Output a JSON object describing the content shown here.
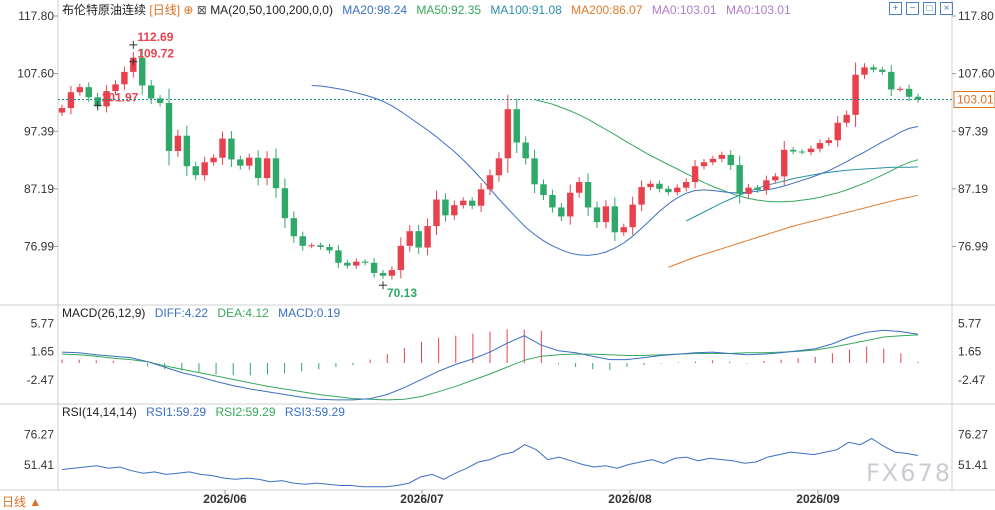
{
  "header": {
    "title": "布伦特原油连续",
    "period_label": "[日线]",
    "ma_label": "MA(20,50,100,200,0,0)",
    "ma20": "MA20:98.24",
    "ma50": "MA50:92.35",
    "ma100": "MA100:91.08",
    "ma200": "MA200:86.07",
    "ma0a": "MA0:103.01",
    "ma0b": "MA0:103.01"
  },
  "macd_header": {
    "label": "MACD(26,12,9)",
    "diff": "DIFF:4.22",
    "dea": "DEA:4.12",
    "macd": "MACD:0.19"
  },
  "rsi_header": {
    "label": "RSI(14,14,14)",
    "rsi1": "RSI1:59.29",
    "rsi2": "RSI2:59.29",
    "rsi3": "RSI3:59.29"
  },
  "footer": {
    "period_tab": "日线 ▲",
    "watermark": "FX678"
  },
  "toolbar": {
    "icons": [
      "expand-icon",
      "shrink-icon",
      "fullscreen-icon",
      "close-icon"
    ]
  },
  "colors": {
    "up": "#e8414e",
    "down": "#2fa86a",
    "ma20": "#3a6fc4",
    "ma50": "#37a85c",
    "ma100": "#2b8fa8",
    "ma200": "#e07a2c",
    "ma0": "#b07cc6",
    "last": "#1b8f80"
  },
  "chart_data": {
    "type": "candlestick",
    "title": "布伦特原油连续",
    "last_price": 103.01,
    "price_axis": {
      "ticks": [
        117.8,
        107.6,
        97.39,
        87.19,
        76.99
      ],
      "range": [
        66.8,
        117.8
      ]
    },
    "date_ticks": [
      "2026/06",
      "2026/07",
      "2026/08",
      "2026/09"
    ],
    "annotations": [
      {
        "label": "112.69",
        "value": 112.69,
        "type": "high"
      },
      {
        "label": "101.97",
        "value": 101.97,
        "type": "high"
      },
      {
        "label": "109.72",
        "value": 109.72,
        "type": "high"
      },
      {
        "label": "70.13",
        "value": 70.13,
        "type": "low"
      }
    ],
    "closes": [
      101.5,
      104.3,
      105.2,
      103.4,
      101.8,
      104.5,
      105.7,
      107.9,
      110.4,
      105.5,
      103.2,
      102.4,
      93.9,
      96.6,
      91.2,
      89.6,
      91.9,
      92.7,
      96.1,
      92.4,
      91.3,
      92.7,
      89.1,
      92.6,
      87.3,
      82.0,
      78.8,
      77.1,
      77.2,
      76.9,
      76.3,
      74.1,
      73.6,
      74.3,
      74.1,
      72.3,
      71.8,
      72.8,
      77.1,
      79.7,
      76.8,
      80.6,
      85.3,
      82.5,
      84.3,
      85.1,
      84.2,
      87.1,
      89.6,
      92.6,
      101.3,
      95.4,
      92.6,
      88.0,
      86.1,
      83.9,
      82.3,
      86.5,
      88.4,
      83.9,
      81.3,
      84.1,
      79.5,
      80.4,
      84.4,
      87.5,
      88.1,
      87.2,
      86.6,
      87.4,
      88.4,
      91.2,
      91.9,
      92.5,
      93.2,
      91.4,
      86.3,
      87.4,
      87.0,
      88.7,
      89.4,
      94.1,
      93.8,
      93.7,
      94.3,
      95.3,
      95.8,
      98.9,
      100.3,
      107.4,
      108.7,
      108.3,
      107.9,
      104.8,
      104.9,
      103.5,
      103.01
    ],
    "ma20": [
      105.5,
      105.4,
      105.2,
      104.9,
      104.6,
      104.2,
      103.8,
      103.3,
      102.7,
      101.9,
      100.9,
      99.8,
      98.7,
      97.6,
      96.4,
      95.1,
      93.8,
      92.3,
      90.7,
      89.0,
      87.2,
      85.4,
      83.7,
      82.0,
      80.4,
      79.1,
      78.0,
      77.1,
      76.4,
      75.8,
      75.5,
      75.4,
      75.6,
      76.0,
      76.7,
      77.6,
      78.8,
      80.2,
      81.7,
      83.2,
      84.5,
      85.6,
      86.4,
      86.9,
      87.0,
      86.9,
      86.7,
      86.5,
      86.5,
      86.6,
      86.8,
      87.0,
      87.3,
      87.7,
      88.2,
      88.7,
      89.2,
      89.8,
      90.4,
      91.2,
      92.0,
      92.9,
      93.7,
      94.6,
      95.5,
      96.3,
      97.2,
      97.9,
      98.24
    ],
    "ma50": [
      103.0,
      102.6,
      102.2,
      101.6,
      101.0,
      100.3,
      99.5,
      98.6,
      97.7,
      96.8,
      95.8,
      94.9,
      94.0,
      93.1,
      92.3,
      91.5,
      90.7,
      89.9,
      89.1,
      88.3,
      87.6,
      87.0,
      86.4,
      85.9,
      85.5,
      85.2,
      85.0,
      84.9,
      84.9,
      85.0,
      85.2,
      85.4,
      85.7,
      86.1,
      86.5,
      87.0,
      87.6,
      88.2,
      88.9,
      89.6,
      90.4,
      91.2,
      91.9,
      92.35
    ],
    "ma100": [
      81.5,
      82.3,
      83.1,
      83.9,
      84.7,
      85.4,
      86.1,
      86.7,
      87.3,
      87.8,
      88.2,
      88.6,
      89.0,
      89.3,
      89.6,
      89.9,
      90.1,
      90.3,
      90.5,
      90.6,
      90.7,
      90.8,
      90.9,
      91.0,
      91.0,
      91.0,
      91.08
    ],
    "ma200": [
      73.3,
      73.9,
      74.5,
      75.1,
      75.6,
      76.1,
      76.6,
      77.1,
      77.6,
      78.1,
      78.6,
      79.1,
      79.6,
      80.1,
      80.6,
      81.0,
      81.4,
      81.8,
      82.2,
      82.6,
      83.0,
      83.4,
      83.8,
      84.2,
      84.6,
      85.0,
      85.4,
      85.7,
      86.07
    ],
    "macd": {
      "range": [
        -5.7,
        6.0
      ],
      "ticks": [
        5.77,
        1.65,
        -2.47
      ],
      "diff": [
        1.6,
        1.5,
        1.2,
        1.0,
        0.8,
        0.2,
        -0.6,
        -1.4,
        -2.0,
        -2.7,
        -3.3,
        -3.8,
        -4.2,
        -4.6,
        -5.0,
        -5.3,
        -5.4,
        -5.4,
        -5.2,
        -4.6,
        -3.6,
        -2.4,
        -1.2,
        -0.2,
        0.6,
        1.6,
        2.9,
        4.0,
        2.6,
        1.8,
        1.5,
        1.0,
        0.5,
        0.5,
        0.8,
        1.1,
        1.3,
        1.5,
        1.6,
        1.4,
        1.2,
        1.3,
        1.5,
        1.8,
        2.1,
        2.8,
        3.8,
        4.5,
        4.8,
        4.6,
        4.22
      ],
      "dea": [
        1.3,
        1.2,
        1.0,
        0.7,
        0.5,
        0.2,
        -0.4,
        -0.9,
        -1.4,
        -1.9,
        -2.4,
        -2.9,
        -3.4,
        -3.8,
        -4.2,
        -4.6,
        -4.9,
        -5.2,
        -5.3,
        -5.4,
        -5.3,
        -4.9,
        -4.2,
        -3.4,
        -2.5,
        -1.6,
        -0.6,
        0.4,
        1.0,
        1.2,
        1.3,
        1.3,
        1.2,
        1.1,
        1.1,
        1.2,
        1.3,
        1.4,
        1.4,
        1.4,
        1.5,
        1.5,
        1.6,
        1.7,
        1.9,
        2.3,
        2.8,
        3.3,
        3.8,
        4.0,
        4.12
      ],
      "hist": [
        0.5,
        0.5,
        0.4,
        0.3,
        0.1,
        -0.5,
        -0.9,
        -1.1,
        -1.3,
        -1.6,
        -1.8,
        -1.8,
        -1.7,
        -1.5,
        -1.2,
        -0.9,
        -0.6,
        -0.3,
        0.5,
        1.3,
        2.2,
        3.1,
        3.7,
        4.0,
        4.3,
        4.6,
        4.9,
        4.9,
        4.7,
        -0.2,
        -0.6,
        -0.9,
        -1.0,
        -0.6,
        -0.3,
        -0.1,
        0.1,
        0.2,
        0.4,
        0.2,
        -0.1,
        0.3,
        0.5,
        0.7,
        0.9,
        1.4,
        2.0,
        2.4,
        2.1,
        1.4,
        0.19
      ]
    },
    "rsi": {
      "range": [
        33,
        88
      ],
      "ticks": [
        76.27,
        51.41
      ],
      "values": [
        48,
        49,
        50,
        51,
        49,
        50,
        47,
        45,
        46,
        44,
        45,
        46,
        44,
        43,
        41,
        40,
        41,
        40,
        38,
        39,
        37,
        36,
        37,
        36,
        35,
        35,
        34,
        34,
        34,
        35,
        37,
        42,
        44,
        40,
        45,
        49,
        54,
        56,
        60,
        62,
        68,
        64,
        56,
        58,
        55,
        52,
        50,
        51,
        49,
        52,
        54,
        56,
        53,
        57,
        58,
        55,
        57,
        56,
        55,
        53,
        54,
        58,
        60,
        62,
        61,
        60,
        62,
        64,
        70,
        68,
        73,
        67,
        62,
        61,
        59.29
      ]
    }
  }
}
